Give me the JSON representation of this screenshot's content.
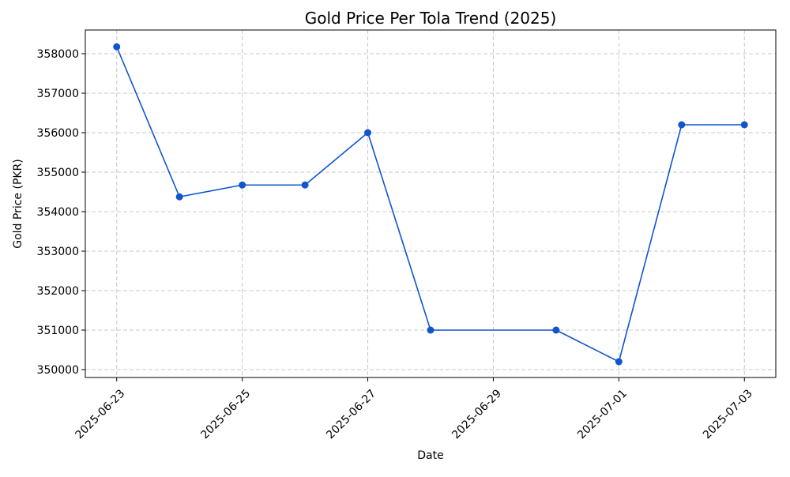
{
  "chart_data": {
    "type": "line",
    "title": "Gold Price Per Tola Trend (2025)",
    "xlabel": "Date",
    "ylabel": "Gold Price (PKR)",
    "x_ticks": [
      "2025-06-23",
      "2025-06-25",
      "2025-06-27",
      "2025-06-29",
      "2025-07-01",
      "2025-07-03"
    ],
    "y_ticks": [
      "350000",
      "351000",
      "352000",
      "353000",
      "354000",
      "355000",
      "356000",
      "357000",
      "358000"
    ],
    "xlim": [
      "2025-06-22",
      "2025-07-03"
    ],
    "ylim": [
      349800,
      358600
    ],
    "grid": true,
    "line_color": "#1155cc",
    "series": [
      {
        "x": [
          "2025-06-23",
          "2025-06-24",
          "2025-06-25",
          "2025-06-26",
          "2025-06-27",
          "2025-06-28",
          "2025-06-30",
          "2025-07-01",
          "2025-07-02",
          "2025-07-03"
        ],
        "values": [
          358175,
          354375,
          354675,
          354675,
          356000,
          351000,
          351000,
          350200,
          356200,
          356200
        ]
      }
    ]
  }
}
